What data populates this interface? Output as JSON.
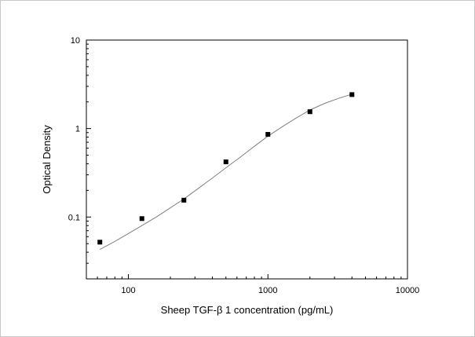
{
  "chart_data": {
    "type": "scatter",
    "xlabel": "Sheep TGF-β 1 concentration (pg/mL)",
    "ylabel": "Optical Density",
    "x_scale": "log",
    "y_scale": "log",
    "xlim": [
      50,
      10000
    ],
    "ylim": [
      0.02,
      10
    ],
    "x_ticks": [
      100,
      1000,
      10000
    ],
    "x_tick_labels": [
      "100",
      "1000",
      "10000"
    ],
    "y_ticks": [
      0.1,
      1,
      10
    ],
    "y_tick_labels": [
      "0.1",
      "1",
      "10"
    ],
    "grid": false,
    "legend": "none",
    "series": [
      {
        "type": "scatter",
        "marker": "square",
        "color": "#000000",
        "x": [
          62.5,
          125,
          250,
          500,
          1000,
          2000,
          4000
        ],
        "y": [
          0.052,
          0.096,
          0.155,
          0.42,
          0.86,
          1.55,
          2.42
        ]
      },
      {
        "type": "line",
        "color": "#808080",
        "x": [
          62.5,
          80,
          100,
          125,
          160,
          200,
          250,
          320,
          400,
          500,
          640,
          800,
          1000,
          1280,
          1600,
          2000,
          2560,
          3200,
          4000
        ],
        "y": [
          0.043,
          0.053,
          0.065,
          0.08,
          0.101,
          0.127,
          0.16,
          0.213,
          0.276,
          0.36,
          0.48,
          0.63,
          0.82,
          1.06,
          1.32,
          1.62,
          1.93,
          2.19,
          2.45
        ]
      }
    ]
  }
}
